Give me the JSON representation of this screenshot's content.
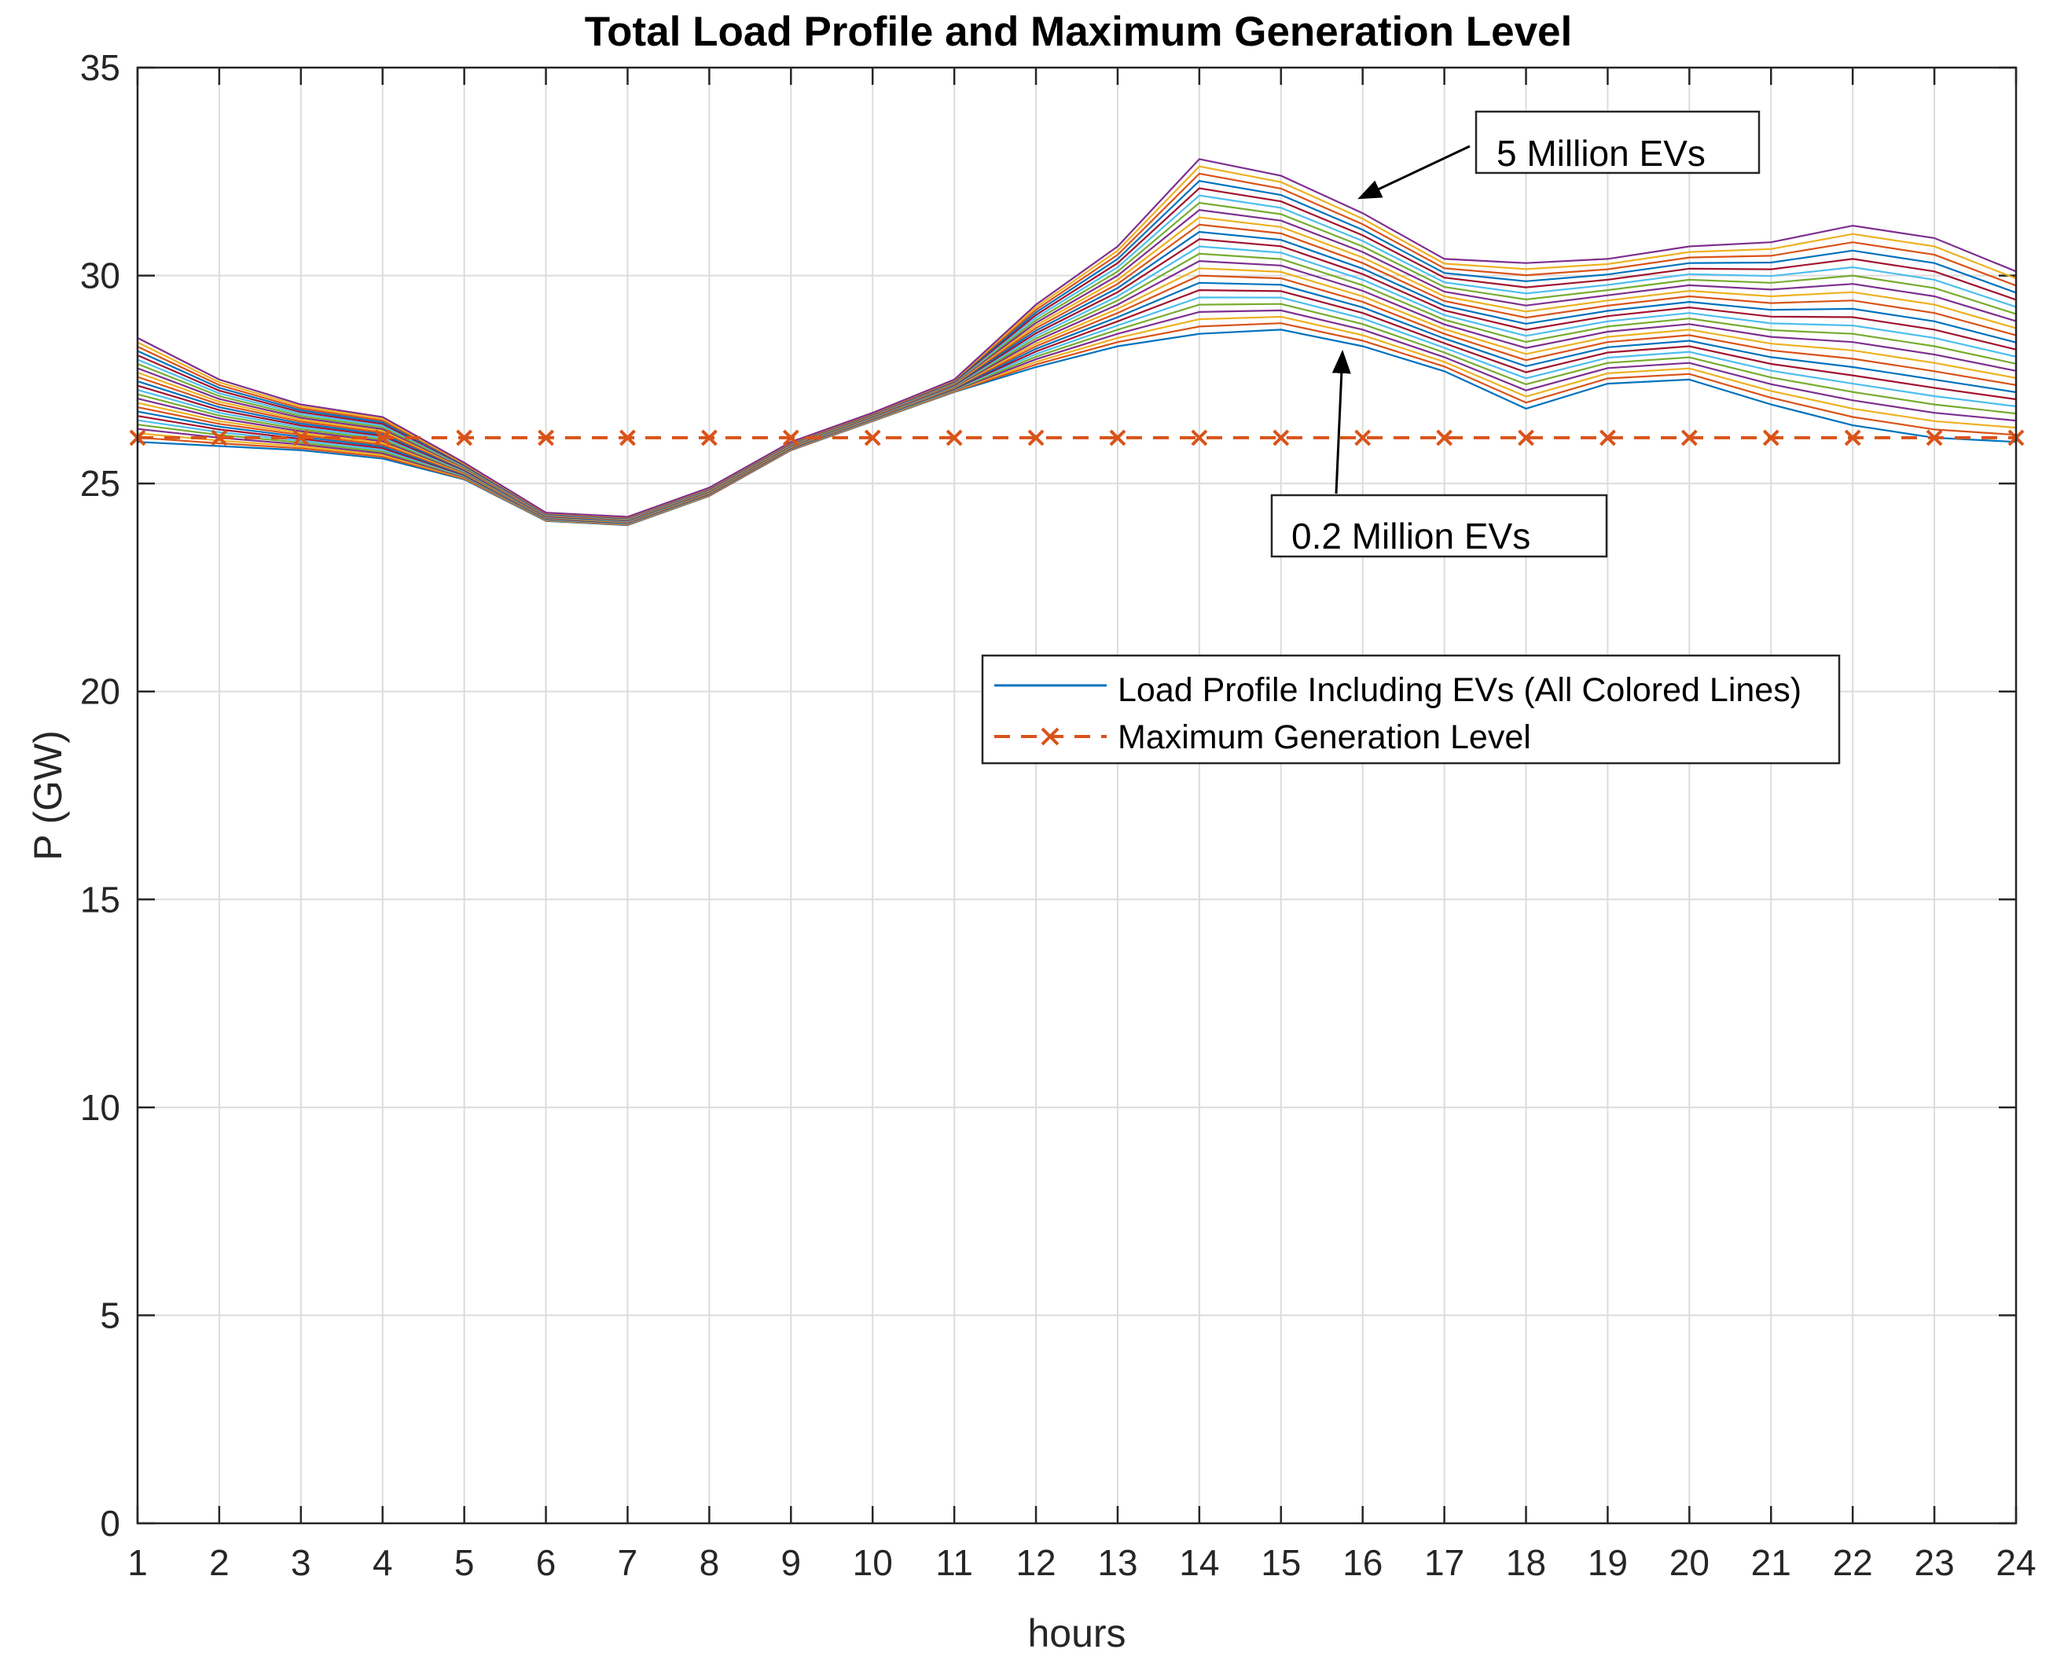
{
  "chart_data": {
    "type": "line",
    "title": "Total Load Profile and Maximum Generation Level",
    "xlabel": "hours",
    "ylabel": "P (GW)",
    "xlim": [
      1,
      24
    ],
    "ylim": [
      0,
      35
    ],
    "grid": true,
    "x": [
      1,
      2,
      3,
      4,
      5,
      6,
      7,
      8,
      9,
      10,
      11,
      12,
      13,
      14,
      15,
      16,
      17,
      18,
      19,
      20,
      21,
      22,
      23,
      24
    ],
    "x_ticks": [
      "1",
      "2",
      "3",
      "4",
      "5",
      "6",
      "7",
      "8",
      "9",
      "10",
      "11",
      "12",
      "13",
      "14",
      "15",
      "16",
      "17",
      "18",
      "19",
      "20",
      "21",
      "22",
      "23",
      "24"
    ],
    "y_ticks": [
      "0",
      "5",
      "10",
      "15",
      "20",
      "25",
      "30",
      "35"
    ],
    "y_tick_values": [
      0,
      5,
      10,
      15,
      20,
      25,
      30,
      35
    ],
    "series_colors": [
      "#0072BD",
      "#D95319",
      "#EDB120",
      "#7E2F8E",
      "#77AC30",
      "#4DBEEE",
      "#A2142F"
    ],
    "series": [
      {
        "name": "Load Profile Including EVs (0.2 Million EVs)",
        "values": [
          26.0,
          25.9,
          25.8,
          25.6,
          25.1,
          24.1,
          24.0,
          24.7,
          25.8,
          26.5,
          27.2,
          27.8,
          28.3,
          28.6,
          28.7,
          28.3,
          27.7,
          26.8,
          27.4,
          27.5,
          26.9,
          26.4,
          26.1,
          26.0
        ]
      },
      {
        "name": "Load Profile Including EVs (5 Million EVs)",
        "values": [
          28.5,
          27.5,
          26.9,
          26.6,
          25.5,
          24.3,
          24.2,
          24.9,
          26.0,
          26.7,
          27.5,
          29.3,
          30.7,
          32.8,
          32.4,
          31.5,
          30.4,
          30.3,
          30.4,
          30.7,
          30.8,
          31.2,
          30.9,
          30.1
        ]
      }
    ],
    "n_profiles": 25,
    "max_generation": {
      "name": "Maximum Generation Level",
      "value": 26.1,
      "color": "#D95319",
      "marker": "x"
    },
    "legend": {
      "location": "center-right",
      "entries": [
        {
          "label": "Load Profile Including EVs (All Colored Lines)",
          "style": "solid",
          "color": "#0072BD"
        },
        {
          "label": "Maximum Generation Level",
          "style": "dashed-x",
          "color": "#D95319"
        }
      ]
    },
    "annotations": [
      {
        "text": "5 Million EVs",
        "points_to": {
          "x": 16,
          "y": 31.6
        }
      },
      {
        "text": "0.2 Million EVs",
        "points_to": {
          "x": 16,
          "y": 28.1
        }
      }
    ]
  }
}
